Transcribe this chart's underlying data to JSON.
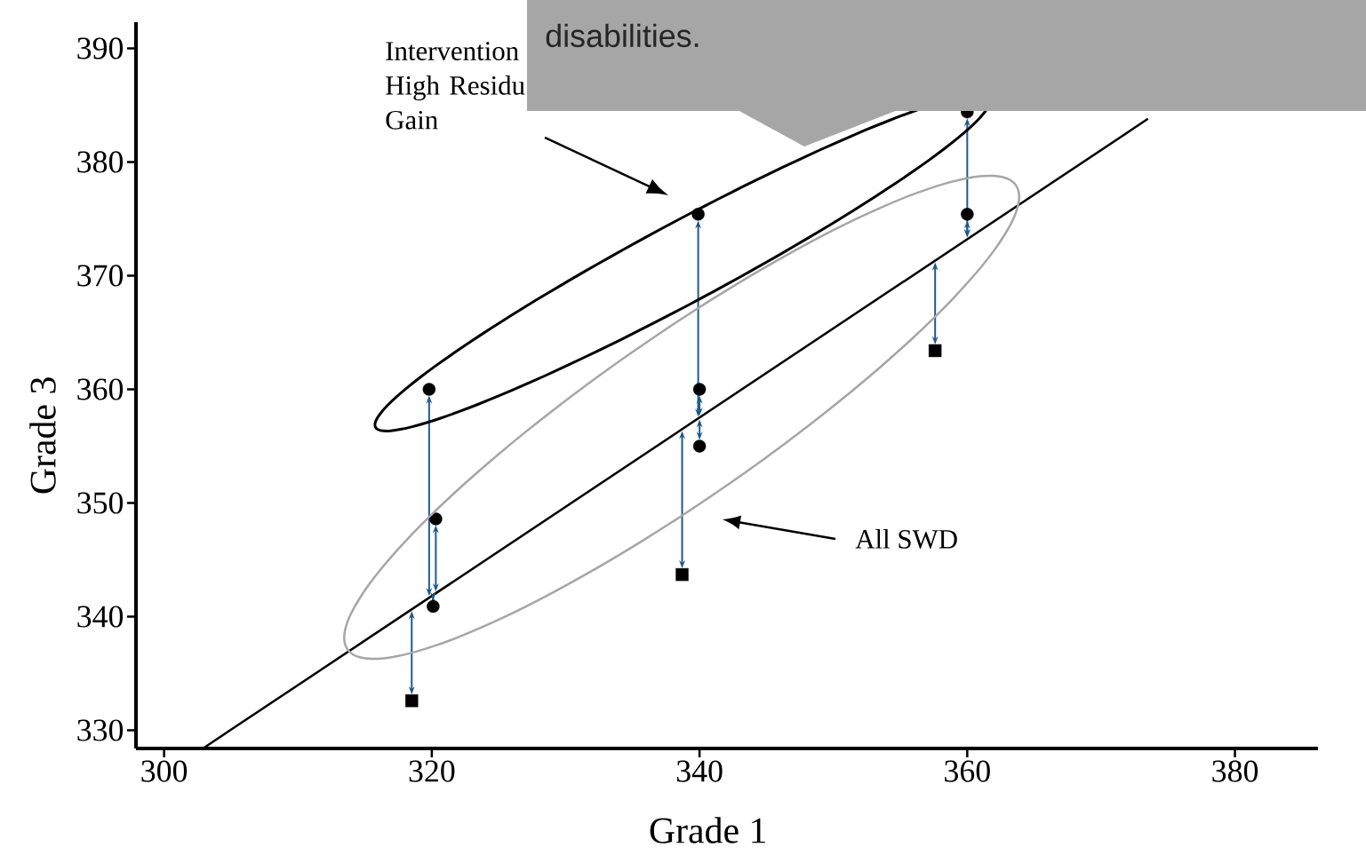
{
  "chart_data": {
    "type": "scatter",
    "xlabel": "Grade 1",
    "ylabel": "Grade 3",
    "xlim": [
      297.9,
      386.2
    ],
    "ylim": [
      328.4,
      392.3
    ],
    "xticks": [
      300,
      320,
      340,
      360,
      380
    ],
    "yticks": [
      330,
      340,
      350,
      360,
      370,
      380,
      390
    ],
    "annotations": [
      "Intervention High Residu Gain",
      "All SWD",
      "disabilities."
    ],
    "series": [
      {
        "type": "scatter",
        "marker": "circle",
        "color": "#000000",
        "x": [
          319.8,
          320.3,
          320.1,
          339.9,
          340.0,
          340.0,
          360.0,
          360.0
        ],
        "values": [
          360.0,
          348.6,
          340.9,
          375.4,
          360.0,
          355.0,
          384.4,
          375.4
        ]
      },
      {
        "type": "scatter",
        "marker": "square",
        "color": "#000000",
        "x": [
          318.5,
          338.7,
          357.6
        ],
        "values": [
          332.6,
          343.7,
          363.4
        ]
      },
      {
        "type": "line",
        "marker": "none",
        "color": "#000000",
        "x": [
          302.9,
          373.5
        ],
        "values": [
          328.4,
          383.8
        ]
      }
    ]
  }
}
